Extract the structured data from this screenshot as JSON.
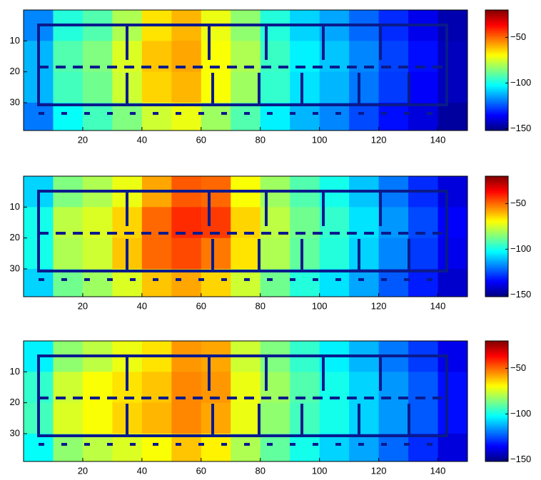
{
  "chart_data": [
    {
      "type": "heatmap",
      "colormap": "jet",
      "xbins": [
        0,
        10,
        20,
        30,
        40,
        50,
        60,
        70,
        80,
        90,
        100,
        110,
        120,
        130,
        140,
        150
      ],
      "ybins": [
        0,
        10,
        20,
        30,
        39
      ],
      "values": [
        [
          -118,
          -98,
          -92,
          -80,
          -66,
          -60,
          -72,
          -84,
          -98,
          -108,
          -114,
          -122,
          -130,
          -138,
          -146
        ],
        [
          -112,
          -92,
          -86,
          -74,
          -62,
          -58,
          -70,
          -80,
          -95,
          -104,
          -110,
          -118,
          -127,
          -134,
          -144
        ],
        [
          -112,
          -94,
          -88,
          -76,
          -64,
          -60,
          -70,
          -82,
          -96,
          -106,
          -112,
          -120,
          -128,
          -136,
          -144
        ],
        [
          -120,
          -102,
          -94,
          -86,
          -76,
          -72,
          -82,
          -92,
          -104,
          -112,
          -118,
          -126,
          -134,
          -140,
          -148
        ]
      ],
      "xlim": [
        0,
        150
      ],
      "ylim": [
        39,
        0
      ],
      "xticks": [
        20,
        40,
        60,
        80,
        100,
        120,
        140
      ],
      "yticks": [
        10,
        20,
        30
      ],
      "clim": [
        -152,
        -20
      ],
      "cticks": [
        {
          "value": -50,
          "label": "−50"
        },
        {
          "value": -100,
          "label": "−100"
        },
        {
          "value": -150,
          "label": "−150"
        }
      ]
    },
    {
      "type": "heatmap",
      "colormap": "jet",
      "xbins": [
        0,
        10,
        20,
        30,
        40,
        50,
        60,
        70,
        80,
        90,
        100,
        110,
        120,
        130,
        140,
        150
      ],
      "ybins": [
        0,
        10,
        20,
        30,
        39
      ],
      "values": [
        [
          -108,
          -86,
          -80,
          -72,
          -58,
          -48,
          -50,
          -70,
          -82,
          -92,
          -100,
          -110,
          -120,
          -130,
          -140
        ],
        [
          -100,
          -78,
          -74,
          -64,
          -50,
          -42,
          -44,
          -64,
          -78,
          -88,
          -96,
          -106,
          -116,
          -126,
          -136
        ],
        [
          -100,
          -80,
          -76,
          -62,
          -50,
          -46,
          -52,
          -66,
          -80,
          -90,
          -98,
          -108,
          -118,
          -128,
          -138
        ],
        [
          -108,
          -88,
          -82,
          -74,
          -62,
          -58,
          -64,
          -76,
          -88,
          -98,
          -106,
          -114,
          -124,
          -132,
          -142
        ]
      ],
      "xlim": [
        0,
        150
      ],
      "ylim": [
        39,
        0
      ],
      "xticks": [
        20,
        40,
        60,
        80,
        100,
        120,
        140
      ],
      "yticks": [
        10,
        20,
        30
      ],
      "clim": [
        -152,
        -20
      ],
      "cticks": [
        {
          "value": -50,
          "label": "−50"
        },
        {
          "value": -100,
          "label": "−100"
        },
        {
          "value": -150,
          "label": "−150"
        }
      ]
    },
    {
      "type": "heatmap",
      "colormap": "jet",
      "xbins": [
        0,
        10,
        20,
        30,
        40,
        50,
        60,
        70,
        80,
        90,
        100,
        110,
        120,
        130,
        140,
        150
      ],
      "ybins": [
        0,
        10,
        20,
        30,
        39
      ],
      "values": [
        [
          -104,
          -84,
          -78,
          -72,
          -66,
          -56,
          -58,
          -76,
          -86,
          -96,
          -104,
          -112,
          -120,
          -128,
          -138
        ],
        [
          -96,
          -76,
          -70,
          -66,
          -62,
          -54,
          -56,
          -72,
          -82,
          -92,
          -100,
          -108,
          -116,
          -124,
          -134
        ],
        [
          -94,
          -74,
          -70,
          -64,
          -60,
          -54,
          -58,
          -72,
          -84,
          -94,
          -100,
          -108,
          -116,
          -124,
          -134
        ],
        [
          -102,
          -84,
          -78,
          -74,
          -70,
          -62,
          -68,
          -80,
          -90,
          -100,
          -108,
          -114,
          -122,
          -130,
          -140
        ]
      ],
      "xlim": [
        0,
        150
      ],
      "ylim": [
        39,
        0
      ],
      "xticks": [
        20,
        40,
        60,
        80,
        100,
        120,
        140
      ],
      "yticks": [
        10,
        20,
        30
      ],
      "clim": [
        -152,
        -20
      ],
      "cticks": [
        {
          "value": -50,
          "label": "−50"
        },
        {
          "value": -100,
          "label": "−100"
        },
        {
          "value": -150,
          "label": "−150"
        }
      ]
    }
  ]
}
